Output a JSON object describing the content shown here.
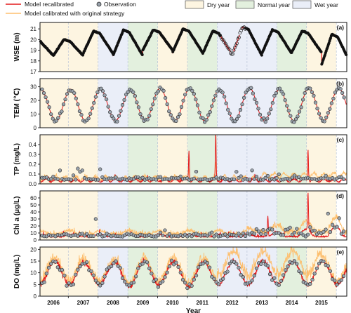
{
  "chart_data": {
    "type": "line",
    "xlabel": "Year",
    "years": [
      "2006",
      "2007",
      "2008",
      "2009",
      "2010",
      "2011",
      "2012",
      "2013",
      "2014",
      "2015"
    ],
    "year_types": [
      "dry",
      "dry",
      "wet",
      "normal",
      "dry",
      "normal",
      "wet",
      "wet",
      "normal",
      "dry"
    ],
    "legend": {
      "recalibrated": "Model recalibrated",
      "observation": "Observation",
      "original": "Model calibrated with original strategy",
      "dry": "Dry year",
      "normal": "Normal year",
      "wet": "Wet year"
    },
    "colors": {
      "recalibrated": "#e41a1c",
      "original": "#fdbf6f",
      "obs_fill": "#9aa3ad",
      "dry": "#fdf5e1",
      "normal": "#e3f0de",
      "wet": "#eaeef8"
    },
    "panels": [
      {
        "key": "wse",
        "label": "(a)",
        "ylabel": "WSE (m)",
        "ylim": [
          17,
          21.6
        ],
        "ticks": [
          17,
          18,
          19,
          20,
          21
        ]
      },
      {
        "key": "tem",
        "label": "(b)",
        "ylabel": "TEM (℃)",
        "ylim": [
          0,
          36
        ],
        "ticks": [
          0,
          10,
          20,
          30
        ]
      },
      {
        "key": "tp",
        "label": "(c)",
        "ylabel": "TP (mg/L)",
        "ylim": [
          0,
          0.5
        ],
        "ticks": [
          0.0,
          0.1,
          0.2,
          0.3,
          0.4
        ]
      },
      {
        "key": "chla",
        "label": "(d)",
        "ylabel": "Chl a (μg/L)",
        "ylim": [
          0,
          70
        ],
        "ticks": [
          0,
          10,
          20,
          30,
          40,
          50,
          60
        ]
      },
      {
        "key": "do",
        "label": "(e)",
        "ylabel": "DO (mg/L)",
        "ylim": [
          0,
          21
        ],
        "ticks": [
          0,
          5,
          10,
          15,
          20
        ]
      }
    ],
    "wse_annual": {
      "peaks": [
        20.0,
        20.8,
        20.9,
        20.9,
        21.0,
        20.8,
        21.2,
        20.9,
        20.8,
        20.5
      ],
      "troughs": [
        18.5,
        18.7,
        18.5,
        19.0,
        18.8,
        18.6,
        18.5,
        18.7,
        18.8,
        17.6
      ]
    },
    "tem_annual": {
      "peaks": [
        28,
        28,
        28,
        29,
        29,
        28,
        29,
        28,
        29,
        29
      ],
      "minimum": 5
    },
    "tp_spikes": [
      {
        "date": 2010.55,
        "value": 0.31
      },
      {
        "date": 2011.45,
        "value": 0.47
      },
      {
        "date": 2014.55,
        "value": 0.33
      }
    ],
    "chla_spikes": [
      {
        "date": 2014.55,
        "value": 60
      },
      {
        "date": 2013.2,
        "value": 33
      }
    ],
    "do_annual": {
      "peaks": [
        15,
        14,
        15,
        15,
        15,
        15,
        15,
        15,
        15,
        15
      ],
      "troughs": [
        5,
        5,
        4,
        5,
        4,
        5,
        5,
        5,
        5,
        5
      ]
    }
  }
}
